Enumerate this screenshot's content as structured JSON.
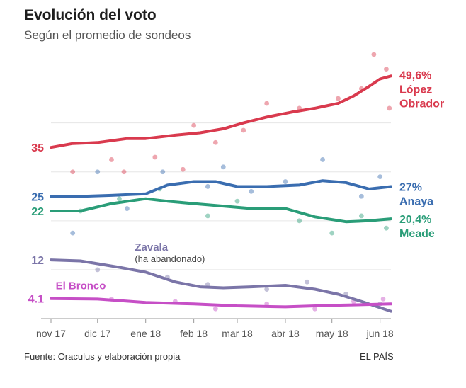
{
  "title": "Evolución del voto",
  "subtitle": "Según el promedio de sondeos",
  "source": "Fuente: Oraculus y elaboración propia",
  "credit": "EL PAÍS",
  "chart_data": {
    "type": "line",
    "x_axis": {
      "ticks": [
        {
          "label": "nov 17",
          "date": "2017-11-01"
        },
        {
          "label": "dic 17",
          "date": "2017-12-01"
        },
        {
          "label": "ene 18",
          "date": "2018-01-01"
        },
        {
          "label": "feb 18",
          "date": "2018-02-01"
        },
        {
          "label": "mar 18",
          "date": "2018-03-01"
        },
        {
          "label": "abr 18",
          "date": "2018-04-01"
        },
        {
          "label": "may 18",
          "date": "2018-05-01"
        },
        {
          "label": "jun 18",
          "date": "2018-06-01"
        }
      ],
      "range": [
        "2017-11-01",
        "2018-06-08"
      ]
    },
    "y_axis": {
      "range": [
        0,
        55
      ],
      "unit": "%"
    },
    "gridlines": true,
    "series": [
      {
        "name": "López Obrador",
        "name_lines": [
          "López",
          "Obrador"
        ],
        "color": "#d93a4e",
        "start_value_label": "35",
        "end_value_label": "49,6%",
        "points": [
          [
            "2017-11-01",
            35.0
          ],
          [
            "2017-11-15",
            35.8
          ],
          [
            "2017-12-01",
            36.0
          ],
          [
            "2017-12-20",
            36.8
          ],
          [
            "2018-01-01",
            36.8
          ],
          [
            "2018-01-20",
            37.5
          ],
          [
            "2018-02-05",
            38.0
          ],
          [
            "2018-02-20",
            38.8
          ],
          [
            "2018-03-05",
            40.0
          ],
          [
            "2018-03-20",
            41.2
          ],
          [
            "2018-04-05",
            42.2
          ],
          [
            "2018-04-20",
            43.0
          ],
          [
            "2018-05-05",
            44.0
          ],
          [
            "2018-05-15",
            45.5
          ],
          [
            "2018-05-25",
            47.5
          ],
          [
            "2018-06-01",
            49.0
          ],
          [
            "2018-06-08",
            49.6
          ]
        ],
        "polls": [
          [
            "2017-11-15",
            30
          ],
          [
            "2017-12-10",
            32.5
          ],
          [
            "2017-12-18",
            30
          ],
          [
            "2018-01-07",
            33
          ],
          [
            "2018-01-25",
            30.5
          ],
          [
            "2018-02-01",
            39.5
          ],
          [
            "2018-02-15",
            36
          ],
          [
            "2018-03-05",
            38.5
          ],
          [
            "2018-03-20",
            44
          ],
          [
            "2018-04-10",
            43
          ],
          [
            "2018-05-05",
            45
          ],
          [
            "2018-05-20",
            47
          ],
          [
            "2018-05-28",
            54
          ],
          [
            "2018-06-05",
            51
          ],
          [
            "2018-06-07",
            43
          ]
        ]
      },
      {
        "name": "Anaya",
        "name_lines": [
          "Anaya"
        ],
        "color": "#3a6db0",
        "start_value_label": "25",
        "end_value_label": "27%",
        "points": [
          [
            "2017-11-01",
            25.0
          ],
          [
            "2017-11-20",
            25.0
          ],
          [
            "2017-12-10",
            25.2
          ],
          [
            "2018-01-01",
            25.5
          ],
          [
            "2018-01-15",
            27.3
          ],
          [
            "2018-02-01",
            28.0
          ],
          [
            "2018-02-15",
            28.0
          ],
          [
            "2018-03-01",
            27.0
          ],
          [
            "2018-03-20",
            27.0
          ],
          [
            "2018-04-10",
            27.3
          ],
          [
            "2018-04-25",
            28.2
          ],
          [
            "2018-05-10",
            27.8
          ],
          [
            "2018-05-25",
            26.5
          ],
          [
            "2018-06-08",
            27.0
          ]
        ],
        "polls": [
          [
            "2017-11-15",
            17.5
          ],
          [
            "2017-12-01",
            30
          ],
          [
            "2017-12-20",
            22.5
          ],
          [
            "2018-01-12",
            30
          ],
          [
            "2018-02-10",
            27
          ],
          [
            "2018-02-20",
            31
          ],
          [
            "2018-03-10",
            26
          ],
          [
            "2018-04-01",
            28
          ],
          [
            "2018-04-25",
            32.5
          ],
          [
            "2018-05-20",
            25
          ],
          [
            "2018-06-01",
            29
          ]
        ]
      },
      {
        "name": "Meade",
        "name_lines": [
          "Meade"
        ],
        "color": "#2a9d78",
        "start_value_label": "22",
        "end_value_label": "20,4%",
        "points": [
          [
            "2017-11-01",
            22.0
          ],
          [
            "2017-11-20",
            22.0
          ],
          [
            "2017-12-10",
            23.5
          ],
          [
            "2018-01-01",
            24.5
          ],
          [
            "2018-01-15",
            24.0
          ],
          [
            "2018-02-01",
            23.5
          ],
          [
            "2018-02-20",
            23.0
          ],
          [
            "2018-03-10",
            22.5
          ],
          [
            "2018-04-01",
            22.5
          ],
          [
            "2018-04-20",
            20.8
          ],
          [
            "2018-05-10",
            19.8
          ],
          [
            "2018-05-25",
            20.0
          ],
          [
            "2018-06-08",
            20.4
          ]
        ],
        "polls": [
          [
            "2017-11-20",
            22
          ],
          [
            "2017-12-15",
            24.5
          ],
          [
            "2018-01-10",
            26.5
          ],
          [
            "2018-02-10",
            21
          ],
          [
            "2018-03-01",
            24
          ],
          [
            "2018-04-10",
            20
          ],
          [
            "2018-05-01",
            17.5
          ],
          [
            "2018-05-20",
            21
          ],
          [
            "2018-06-05",
            18.5
          ]
        ]
      },
      {
        "name": "Zavala",
        "name_lines": [
          "Zavala"
        ],
        "note": "(ha abandonado)",
        "color": "#7b75a8",
        "start_value_label": "12",
        "end_value_label": "",
        "points": [
          [
            "2017-11-01",
            12.0
          ],
          [
            "2017-11-20",
            11.8
          ],
          [
            "2017-12-15",
            10.5
          ],
          [
            "2018-01-01",
            9.5
          ],
          [
            "2018-01-20",
            7.5
          ],
          [
            "2018-02-05",
            6.5
          ],
          [
            "2018-02-20",
            6.3
          ],
          [
            "2018-03-10",
            6.5
          ],
          [
            "2018-04-01",
            6.8
          ],
          [
            "2018-04-20",
            6.0
          ],
          [
            "2018-05-05",
            5.0
          ],
          [
            "2018-05-20",
            3.5
          ],
          [
            "2018-06-08",
            1.5
          ]
        ],
        "polls": [
          [
            "2017-12-01",
            10
          ],
          [
            "2018-01-15",
            8.5
          ],
          [
            "2018-02-10",
            7
          ],
          [
            "2018-03-20",
            6
          ],
          [
            "2018-04-15",
            7.5
          ],
          [
            "2018-05-10",
            5
          ],
          [
            "2018-06-01",
            3
          ]
        ]
      },
      {
        "name": "El Bronco",
        "name_lines": [
          "El Bronco"
        ],
        "color": "#c64fc6",
        "start_value_label": "4.1",
        "end_value_label": "",
        "points": [
          [
            "2017-11-01",
            4.1
          ],
          [
            "2017-12-01",
            4.0
          ],
          [
            "2018-01-01",
            3.3
          ],
          [
            "2018-02-01",
            3.0
          ],
          [
            "2018-03-01",
            2.6
          ],
          [
            "2018-04-01",
            2.4
          ],
          [
            "2018-05-01",
            2.7
          ],
          [
            "2018-06-08",
            3.0
          ]
        ],
        "polls": [
          [
            "2017-12-10",
            4
          ],
          [
            "2018-01-20",
            3.5
          ],
          [
            "2018-02-15",
            2
          ],
          [
            "2018-03-20",
            3
          ],
          [
            "2018-04-20",
            2
          ],
          [
            "2018-05-15",
            3.5
          ],
          [
            "2018-06-03",
            4
          ]
        ]
      }
    ]
  }
}
